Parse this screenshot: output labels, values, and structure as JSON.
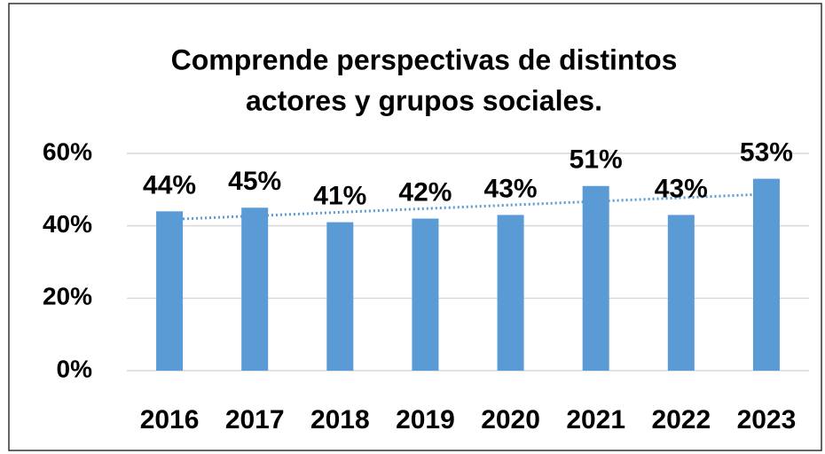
{
  "chart_data": {
    "type": "bar",
    "title": [
      "Comprende perspectivas de distintos",
      "actores y grupos sociales."
    ],
    "categories": [
      "2016",
      "2017",
      "2018",
      "2019",
      "2020",
      "2021",
      "2022",
      "2023"
    ],
    "values": [
      44,
      45,
      41,
      42,
      43,
      51,
      43,
      53
    ],
    "value_labels": [
      "44%",
      "45%",
      "41%",
      "42%",
      "43%",
      "51%",
      "43%",
      "53%"
    ],
    "color": "#5b9bd5",
    "ylim": [
      0,
      60
    ],
    "yticks": [
      {
        "value": 0,
        "label": "0%"
      },
      {
        "value": 20,
        "label": "20%"
      },
      {
        "value": 40,
        "label": "40%"
      },
      {
        "value": 60,
        "label": "60%"
      }
    ],
    "grid": true,
    "trendline": {
      "type": "linear",
      "color": "#5b9bd5",
      "style": "dotted"
    }
  }
}
